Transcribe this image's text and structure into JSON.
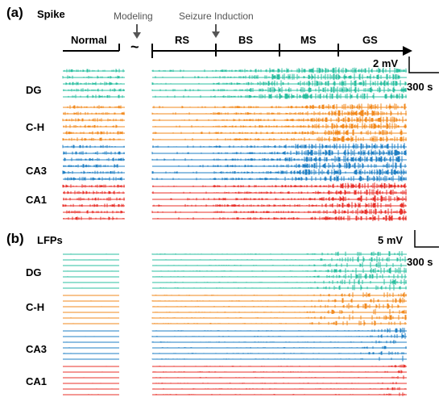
{
  "panel_a": {
    "label": "(a)",
    "title": "Spike",
    "timeline": {
      "normal_label": "Normal",
      "gap_symbol": "~",
      "modeling_label": "Modeling",
      "induction_label": "Seizure Induction",
      "phases": [
        "RS",
        "BS",
        "MS",
        "GS"
      ]
    },
    "scale_amplitude": "2 mV",
    "scale_time": "300 s",
    "regions": [
      "DG",
      "C-H",
      "CA3",
      "CA1"
    ]
  },
  "panel_b": {
    "label": "(b)",
    "title": "LFPs",
    "scale_amplitude": "5 mV",
    "scale_time": "300 s",
    "regions": [
      "DG",
      "C-H",
      "CA3",
      "CA1"
    ]
  },
  "colors": {
    "DG": "#2bbfa0",
    "C-H": "#f28a1e",
    "CA3": "#1f7fc4",
    "CA1": "#e8302a",
    "annotation": "#555555",
    "axis": "#000000"
  }
}
